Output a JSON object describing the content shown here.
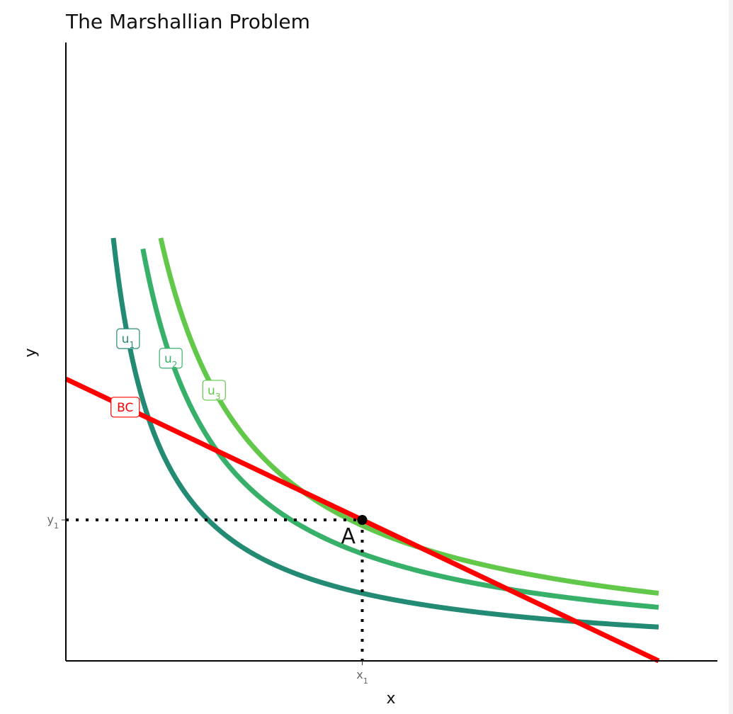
{
  "chart_data": {
    "type": "line",
    "title": "The Marshallian Problem",
    "xlabel": "x",
    "ylabel": "y",
    "xlim": [
      0,
      10
    ],
    "ylim": [
      0,
      10
    ],
    "grid": false,
    "legend": "none",
    "series": [
      {
        "name": "u1",
        "label_text": "u",
        "label_sub": "1",
        "color": "#238a73",
        "k": 6,
        "x_range": [
          0.8,
          10
        ]
      },
      {
        "name": "u2",
        "label_text": "u",
        "label_sub": "2",
        "color": "#37b06a",
        "k": 9.5,
        "x_range": [
          1.3,
          10
        ]
      },
      {
        "name": "u3",
        "label_text": "u",
        "label_sub": "3",
        "color": "#62c849",
        "k": 12,
        "x_range": [
          1.6,
          10
        ]
      },
      {
        "name": "BC",
        "label_text": "BC",
        "label_sub": "",
        "color": "#ff0000",
        "type": "budget_line",
        "points": [
          [
            0,
            5
          ],
          [
            10,
            0
          ]
        ]
      }
    ],
    "label_positions_x": {
      "u1": 1.05,
      "u2": 1.77,
      "u3": 2.5,
      "BC": 1.0
    },
    "point": {
      "label": "A",
      "x": 5,
      "y": 2.5
    },
    "ticks": {
      "x": [
        {
          "value": 5,
          "text": "x",
          "sub": "1"
        }
      ],
      "y": [
        {
          "value": 2.5,
          "text": "y",
          "sub": "1"
        }
      ]
    }
  }
}
